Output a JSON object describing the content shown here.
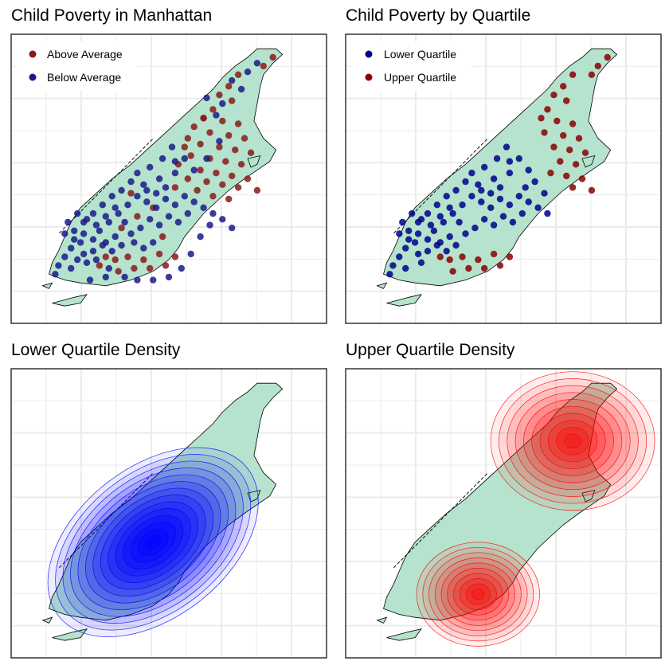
{
  "colors": {
    "land_fill": "#b5e3cd",
    "land_stroke": "#000000",
    "grid": "#ebebeb",
    "panel_border": "#333333",
    "above_average": "#8b1a1a",
    "below_average": "#1a1a8b",
    "lower_quartile": "#00008b",
    "upper_quartile": "#8b0000",
    "density_low": "#0000ff",
    "density_high": "#ff0000"
  },
  "chart_data": [
    {
      "type": "scatter",
      "title": "Child Poverty in Manhattan",
      "xlabel": "",
      "ylabel": "",
      "grid": true,
      "legend_position": "top-left",
      "legend": [
        {
          "label": "Above Average",
          "color": "#8b1a1a"
        },
        {
          "label": "Below Average",
          "color": "#1a1a8b"
        }
      ],
      "series": [
        {
          "name": "Above Average",
          "color": "#8b1a1a",
          "points": [
            [
              0.83,
              0.92
            ],
            [
              0.8,
              0.89
            ],
            [
              0.72,
              0.86
            ],
            [
              0.69,
              0.82
            ],
            [
              0.66,
              0.79
            ],
            [
              0.7,
              0.77
            ],
            [
              0.64,
              0.74
            ],
            [
              0.61,
              0.71
            ],
            [
              0.67,
              0.7
            ],
            [
              0.72,
              0.69
            ],
            [
              0.58,
              0.68
            ],
            [
              0.63,
              0.66
            ],
            [
              0.69,
              0.65
            ],
            [
              0.74,
              0.64
            ],
            [
              0.56,
              0.64
            ],
            [
              0.6,
              0.62
            ],
            [
              0.66,
              0.61
            ],
            [
              0.71,
              0.6
            ],
            [
              0.76,
              0.59
            ],
            [
              0.57,
              0.58
            ],
            [
              0.63,
              0.57
            ],
            [
              0.68,
              0.56
            ],
            [
              0.73,
              0.55
            ],
            [
              0.53,
              0.55
            ],
            [
              0.6,
              0.53
            ],
            [
              0.65,
              0.52
            ],
            [
              0.7,
              0.51
            ],
            [
              0.75,
              0.5
            ],
            [
              0.56,
              0.5
            ],
            [
              0.62,
              0.49
            ],
            [
              0.67,
              0.48
            ],
            [
              0.72,
              0.47
            ],
            [
              0.78,
              0.46
            ],
            [
              0.52,
              0.47
            ],
            [
              0.59,
              0.46
            ],
            [
              0.64,
              0.44
            ],
            [
              0.69,
              0.43
            ],
            [
              0.38,
              0.45
            ],
            [
              0.45,
              0.4
            ],
            [
              0.4,
              0.37
            ],
            [
              0.35,
              0.33
            ],
            [
              0.48,
              0.3
            ],
            [
              0.42,
              0.22
            ],
            [
              0.37,
              0.23
            ],
            [
              0.33,
              0.22
            ],
            [
              0.3,
              0.23
            ],
            [
              0.39,
              0.19
            ],
            [
              0.44,
              0.19
            ],
            [
              0.49,
              0.2
            ],
            [
              0.34,
              0.18
            ],
            [
              0.28,
              0.2
            ],
            [
              0.52,
              0.23
            ],
            [
              0.47,
              0.24
            ],
            [
              0.61,
              0.71
            ],
            [
              0.55,
              0.61
            ]
          ]
        },
        {
          "name": "Below Average",
          "color": "#1a1a8b",
          "points": [
            [
              0.78,
              0.9
            ],
            [
              0.75,
              0.87
            ],
            [
              0.7,
              0.84
            ],
            [
              0.73,
              0.81
            ],
            [
              0.67,
              0.76
            ],
            [
              0.62,
              0.78
            ],
            [
              0.65,
              0.72
            ],
            [
              0.55,
              0.57
            ],
            [
              0.51,
              0.61
            ],
            [
              0.48,
              0.57
            ],
            [
              0.52,
              0.52
            ],
            [
              0.47,
              0.5
            ],
            [
              0.44,
              0.54
            ],
            [
              0.4,
              0.52
            ],
            [
              0.42,
              0.48
            ],
            [
              0.38,
              0.49
            ],
            [
              0.35,
              0.46
            ],
            [
              0.32,
              0.44
            ],
            [
              0.29,
              0.41
            ],
            [
              0.26,
              0.38
            ],
            [
              0.23,
              0.35
            ],
            [
              0.2,
              0.32
            ],
            [
              0.22,
              0.28
            ],
            [
              0.19,
              0.26
            ],
            [
              0.17,
              0.23
            ],
            [
              0.15,
              0.2
            ],
            [
              0.14,
              0.17
            ],
            [
              0.19,
              0.19
            ],
            [
              0.24,
              0.21
            ],
            [
              0.26,
              0.25
            ],
            [
              0.3,
              0.28
            ],
            [
              0.33,
              0.3
            ],
            [
              0.28,
              0.32
            ],
            [
              0.31,
              0.35
            ],
            [
              0.34,
              0.38
            ],
            [
              0.37,
              0.41
            ],
            [
              0.4,
              0.44
            ],
            [
              0.43,
              0.46
            ],
            [
              0.46,
              0.45
            ],
            [
              0.49,
              0.43
            ],
            [
              0.52,
              0.41
            ],
            [
              0.55,
              0.44
            ],
            [
              0.58,
              0.42
            ],
            [
              0.61,
              0.4
            ],
            [
              0.64,
              0.38
            ],
            [
              0.67,
              0.36
            ],
            [
              0.7,
              0.33
            ],
            [
              0.56,
              0.38
            ],
            [
              0.53,
              0.35
            ],
            [
              0.5,
              0.37
            ],
            [
              0.47,
              0.34
            ],
            [
              0.44,
              0.36
            ],
            [
              0.41,
              0.33
            ],
            [
              0.38,
              0.31
            ],
            [
              0.35,
              0.27
            ],
            [
              0.32,
              0.25
            ],
            [
              0.29,
              0.27
            ],
            [
              0.26,
              0.29
            ],
            [
              0.23,
              0.31
            ],
            [
              0.2,
              0.29
            ],
            [
              0.17,
              0.31
            ],
            [
              0.23,
              0.24
            ],
            [
              0.27,
              0.22
            ],
            [
              0.31,
              0.19
            ],
            [
              0.36,
              0.16
            ],
            [
              0.4,
              0.15
            ],
            [
              0.45,
              0.15
            ],
            [
              0.5,
              0.16
            ],
            [
              0.54,
              0.19
            ],
            [
              0.57,
              0.24
            ],
            [
              0.6,
              0.3
            ],
            [
              0.63,
              0.34
            ],
            [
              0.45,
              0.28
            ],
            [
              0.42,
              0.26
            ],
            [
              0.39,
              0.28
            ],
            [
              0.36,
              0.35
            ],
            [
              0.33,
              0.4
            ],
            [
              0.3,
              0.37
            ],
            [
              0.27,
              0.34
            ],
            [
              0.24,
              0.36
            ],
            [
              0.21,
              0.38
            ],
            [
              0.58,
              0.53
            ],
            [
              0.62,
              0.57
            ],
            [
              0.66,
              0.63
            ],
            [
              0.3,
              0.16
            ],
            [
              0.25,
              0.15
            ],
            [
              0.21,
              0.22
            ],
            [
              0.18,
              0.35
            ],
            [
              0.52,
              0.56
            ],
            [
              0.49,
              0.47
            ],
            [
              0.46,
              0.4
            ],
            [
              0.43,
              0.42
            ]
          ]
        }
      ]
    },
    {
      "type": "scatter",
      "title": "Child Poverty by Quartile",
      "xlabel": "",
      "ylabel": "",
      "grid": true,
      "legend_position": "top-left",
      "legend": [
        {
          "label": "Lower Quartile",
          "color": "#00008b"
        },
        {
          "label": "Upper Quartile",
          "color": "#8b0000"
        }
      ],
      "series": [
        {
          "name": "Lower Quartile",
          "color": "#00008b",
          "points": [
            [
              0.55,
              0.57
            ],
            [
              0.51,
              0.61
            ],
            [
              0.48,
              0.57
            ],
            [
              0.52,
              0.52
            ],
            [
              0.47,
              0.5
            ],
            [
              0.44,
              0.54
            ],
            [
              0.4,
              0.52
            ],
            [
              0.42,
              0.48
            ],
            [
              0.38,
              0.49
            ],
            [
              0.35,
              0.46
            ],
            [
              0.32,
              0.44
            ],
            [
              0.29,
              0.41
            ],
            [
              0.26,
              0.38
            ],
            [
              0.23,
              0.35
            ],
            [
              0.2,
              0.32
            ],
            [
              0.22,
              0.28
            ],
            [
              0.19,
              0.26
            ],
            [
              0.17,
              0.23
            ],
            [
              0.15,
              0.2
            ],
            [
              0.14,
              0.17
            ],
            [
              0.19,
              0.19
            ],
            [
              0.24,
              0.21
            ],
            [
              0.26,
              0.25
            ],
            [
              0.3,
              0.28
            ],
            [
              0.33,
              0.3
            ],
            [
              0.28,
              0.32
            ],
            [
              0.31,
              0.35
            ],
            [
              0.34,
              0.38
            ],
            [
              0.37,
              0.41
            ],
            [
              0.4,
              0.44
            ],
            [
              0.43,
              0.46
            ],
            [
              0.46,
              0.45
            ],
            [
              0.49,
              0.43
            ],
            [
              0.52,
              0.41
            ],
            [
              0.55,
              0.44
            ],
            [
              0.58,
              0.42
            ],
            [
              0.61,
              0.4
            ],
            [
              0.64,
              0.38
            ],
            [
              0.56,
              0.38
            ],
            [
              0.53,
              0.35
            ],
            [
              0.5,
              0.37
            ],
            [
              0.47,
              0.34
            ],
            [
              0.44,
              0.36
            ],
            [
              0.41,
              0.33
            ],
            [
              0.38,
              0.31
            ],
            [
              0.35,
              0.27
            ],
            [
              0.32,
              0.25
            ],
            [
              0.29,
              0.27
            ],
            [
              0.26,
              0.29
            ],
            [
              0.23,
              0.31
            ],
            [
              0.2,
              0.29
            ],
            [
              0.17,
              0.31
            ],
            [
              0.23,
              0.24
            ],
            [
              0.36,
              0.35
            ],
            [
              0.33,
              0.4
            ],
            [
              0.3,
              0.37
            ],
            [
              0.27,
              0.34
            ],
            [
              0.24,
              0.36
            ],
            [
              0.21,
              0.38
            ],
            [
              0.58,
              0.53
            ],
            [
              0.18,
              0.35
            ],
            [
              0.52,
              0.56
            ],
            [
              0.49,
              0.47
            ],
            [
              0.46,
              0.4
            ],
            [
              0.43,
              0.42
            ],
            [
              0.6,
              0.49
            ],
            [
              0.63,
              0.45
            ],
            [
              0.57,
              0.47
            ]
          ]
        },
        {
          "name": "Upper Quartile",
          "color": "#8b0000",
          "points": [
            [
              0.83,
              0.92
            ],
            [
              0.8,
              0.89
            ],
            [
              0.78,
              0.86
            ],
            [
              0.72,
              0.86
            ],
            [
              0.69,
              0.82
            ],
            [
              0.66,
              0.79
            ],
            [
              0.7,
              0.77
            ],
            [
              0.64,
              0.74
            ],
            [
              0.67,
              0.7
            ],
            [
              0.72,
              0.69
            ],
            [
              0.63,
              0.66
            ],
            [
              0.69,
              0.65
            ],
            [
              0.74,
              0.64
            ],
            [
              0.66,
              0.61
            ],
            [
              0.71,
              0.6
            ],
            [
              0.76,
              0.59
            ],
            [
              0.68,
              0.56
            ],
            [
              0.73,
              0.55
            ],
            [
              0.7,
              0.51
            ],
            [
              0.75,
              0.5
            ],
            [
              0.72,
              0.47
            ],
            [
              0.78,
              0.46
            ],
            [
              0.42,
              0.22
            ],
            [
              0.37,
              0.23
            ],
            [
              0.33,
              0.22
            ],
            [
              0.3,
              0.23
            ],
            [
              0.39,
              0.19
            ],
            [
              0.44,
              0.19
            ],
            [
              0.49,
              0.2
            ],
            [
              0.34,
              0.18
            ],
            [
              0.52,
              0.23
            ],
            [
              0.47,
              0.24
            ],
            [
              0.65,
              0.52
            ],
            [
              0.62,
              0.71
            ]
          ]
        }
      ]
    },
    {
      "type": "density",
      "title": "Lower Quartile Density",
      "xlabel": "",
      "ylabel": "",
      "grid": true,
      "color": "#0000ff",
      "levels": 14,
      "centers": [
        {
          "x": 0.45,
          "y": 0.4,
          "weight": 1.0
        }
      ]
    },
    {
      "type": "density",
      "title": "Upper Quartile Density",
      "xlabel": "",
      "ylabel": "",
      "grid": true,
      "color": "#ff0000",
      "levels": 10,
      "centers": [
        {
          "x": 0.72,
          "y": 0.75,
          "weight": 1.0
        },
        {
          "x": 0.42,
          "y": 0.22,
          "weight": 0.75
        }
      ]
    }
  ]
}
